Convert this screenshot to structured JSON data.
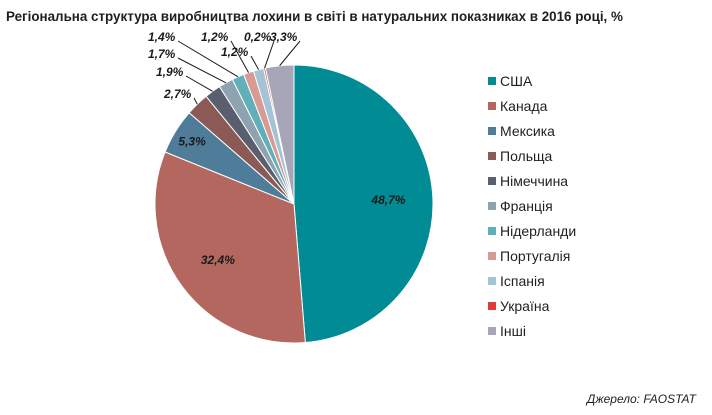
{
  "chart_data": {
    "type": "pie",
    "title": "Регіональна структура виробництва лохини в світі в натуральних показниках в 2016 році, %",
    "legend_position": "right",
    "slices": [
      {
        "name": "США",
        "value": 48.7,
        "label": "48,7%",
        "color": "#008b95"
      },
      {
        "name": "Канада",
        "value": 32.4,
        "label": "32,4%",
        "color": "#b3675e"
      },
      {
        "name": "Мексика",
        "value": 5.3,
        "label": "5,3%",
        "color": "#4f7c99"
      },
      {
        "name": "Польща",
        "value": 2.7,
        "label": "2,7%",
        "color": "#8c5a56"
      },
      {
        "name": "Німеччина",
        "value": 1.9,
        "label": "1,9%",
        "color": "#5a5f70"
      },
      {
        "name": "Франція",
        "value": 1.7,
        "label": "1,7%",
        "color": "#8ea3b0"
      },
      {
        "name": "Нідерланди",
        "value": 1.4,
        "label": "1,4%",
        "color": "#5fb0b8"
      },
      {
        "name": "Португалія",
        "value": 1.2,
        "label": "1,2%",
        "color": "#d99a94"
      },
      {
        "name": "Іспанія",
        "value": 1.2,
        "label": "1,2%",
        "color": "#a3c4d6"
      },
      {
        "name": "Україна",
        "value": 0.2,
        "label": "0,2%",
        "color": "#e03a3a"
      },
      {
        "name": "Інші",
        "value": 3.3,
        "label": "3,3%",
        "color": "#a6a6b8"
      }
    ]
  },
  "source": "Джерело: FAOSTAT"
}
